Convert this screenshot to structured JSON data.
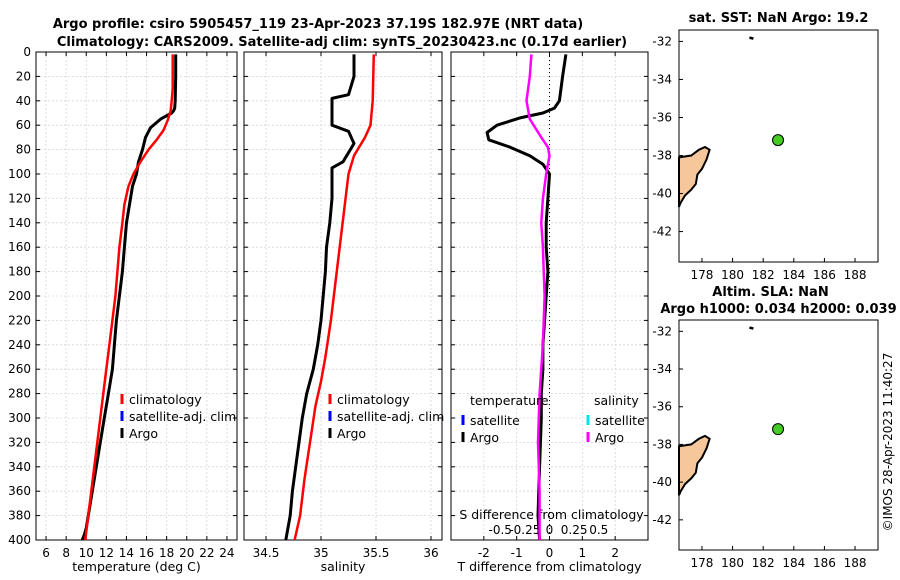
{
  "title": {
    "line1": "Argo profile: csiro 5905457_119 23-Apr-2023 37.19S 182.97E (NRT data)",
    "line2": "Climatology: CARS2009. Satellite-adj clim: synTS_20230423.nc (0.17d earlier)"
  },
  "watermark": "©IMOS 28-Apr-2023 11:40:27",
  "colors": {
    "argo": "#000000",
    "clim": "#ff0000",
    "sat": "#0000ff",
    "sal_diff": "#ff00ff",
    "sal_sat": "#00e5ee",
    "land": "#f5c79a",
    "float_marker": "#44cc22"
  },
  "chart_data": [
    {
      "type": "line",
      "name": "temperature",
      "xlabel": "temperature (deg C)",
      "ylabel": "",
      "xlim": [
        5,
        25
      ],
      "ylim": [
        0,
        400
      ],
      "xticks": [
        6,
        8,
        10,
        12,
        14,
        16,
        18,
        20,
        22,
        24
      ],
      "yticks": [
        0,
        20,
        40,
        60,
        80,
        100,
        120,
        140,
        160,
        180,
        200,
        220,
        240,
        260,
        280,
        300,
        320,
        340,
        360,
        380,
        400
      ],
      "legend": [
        "climatology",
        "satellite-adj. clim",
        "Argo"
      ],
      "series": [
        {
          "name": "Argo",
          "color": "#000000",
          "x": [
            18.9,
            18.9,
            18.85,
            18.8,
            18.7,
            18.5,
            17.4,
            16.4,
            15.9,
            15.6,
            15.2,
            15.0,
            14.6,
            14.3,
            14.0,
            13.8,
            13.6,
            13.3,
            13.0,
            12.8,
            12.6,
            12.2,
            11.8,
            11.4,
            11.0,
            10.6,
            10.4,
            10.2,
            10.0,
            9.8,
            9.6
          ],
          "y": [
            2,
            20,
            40,
            46,
            48,
            50,
            55,
            62,
            70,
            80,
            90,
            100,
            110,
            125,
            140,
            160,
            180,
            200,
            220,
            240,
            260,
            280,
            300,
            320,
            340,
            360,
            370,
            380,
            390,
            396,
            400
          ]
        },
        {
          "name": "climatology",
          "color": "#ff0000",
          "x": [
            18.6,
            18.6,
            18.5,
            18.4,
            18.1,
            17.7,
            17.0,
            16.2,
            15.4,
            14.7,
            14.2,
            13.8,
            13.6,
            13.3,
            13.1,
            12.9,
            12.6,
            12.3,
            12.0,
            11.7,
            11.4,
            11.1,
            10.8,
            10.5,
            10.2,
            9.9
          ],
          "y": [
            2,
            30,
            40,
            48,
            56,
            64,
            72,
            80,
            90,
            100,
            110,
            125,
            140,
            160,
            180,
            200,
            220,
            240,
            260,
            280,
            300,
            320,
            340,
            360,
            380,
            400
          ]
        }
      ]
    },
    {
      "type": "line",
      "name": "salinity",
      "xlabel": "salinity",
      "xlim": [
        34.3,
        36.1
      ],
      "ylim": [
        0,
        400
      ],
      "xticks": [
        34.5,
        35,
        35.5,
        36
      ],
      "xtick_labels": [
        "34.5",
        "35",
        "35.5",
        "36"
      ],
      "legend": [
        "climatology",
        "satellite-adj. clim",
        "Argo"
      ],
      "series": [
        {
          "name": "Argo",
          "color": "#000000",
          "x": [
            35.3,
            35.3,
            35.25,
            35.1,
            35.1,
            35.25,
            35.3,
            35.2,
            35.1,
            35.1,
            35.08,
            35.05,
            35.04,
            35.02,
            35.0,
            34.97,
            34.93,
            34.87,
            34.83,
            34.8,
            34.77,
            34.74,
            34.72,
            34.7,
            34.68
          ],
          "y": [
            2,
            20,
            35,
            38,
            60,
            65,
            75,
            90,
            95,
            120,
            140,
            160,
            180,
            200,
            220,
            240,
            260,
            280,
            300,
            320,
            340,
            360,
            380,
            390,
            400
          ]
        },
        {
          "name": "climatology",
          "color": "#ff0000",
          "x": [
            35.48,
            35.47,
            35.45,
            35.4,
            35.3,
            35.25,
            35.21,
            35.17,
            35.13,
            35.09,
            35.04,
            35.0,
            34.95,
            34.9,
            34.85,
            34.81,
            34.76
          ],
          "y": [
            2,
            40,
            60,
            70,
            85,
            100,
            130,
            160,
            190,
            220,
            250,
            270,
            290,
            320,
            350,
            380,
            400
          ]
        }
      ]
    },
    {
      "type": "line",
      "name": "difference",
      "xlabel": "T difference from climatology",
      "top_xlabel": "S difference from climatology",
      "xlim": [
        -3,
        3
      ],
      "ylim": [
        0,
        400
      ],
      "xticks": [
        -2,
        -1,
        0,
        1,
        2
      ],
      "xtick_labels": [
        "-2",
        "-1",
        "0",
        "1",
        "2"
      ],
      "top_xticks": [
        -1.5,
        -0.75,
        0,
        0.75,
        1.5
      ],
      "top_xtick_labels": [
        "-0.5",
        "-0.25",
        "0",
        "0.25",
        "0.5"
      ],
      "legend": {
        "temperature": [
          "satellite",
          "Argo"
        ],
        "salinity": [
          "satellite",
          "Argo"
        ]
      },
      "legend_headers": [
        "temperature",
        "salinity"
      ],
      "series": [
        {
          "name": "T diff Argo",
          "color": "#000000",
          "x": [
            0.5,
            0.4,
            0.3,
            0.15,
            -0.2,
            -0.9,
            -1.6,
            -1.9,
            -1.85,
            -1.2,
            -0.6,
            -0.2,
            0.0,
            -0.05,
            -0.1,
            -0.1,
            -0.05,
            -0.1,
            -0.15,
            -0.2,
            -0.2,
            -0.25,
            -0.25,
            -0.3,
            -0.35,
            -0.3
          ],
          "y": [
            2,
            20,
            40,
            46,
            50,
            54,
            60,
            66,
            72,
            78,
            85,
            92,
            100,
            120,
            140,
            160,
            180,
            200,
            220,
            240,
            260,
            280,
            300,
            340,
            380,
            400
          ]
        },
        {
          "name": "S diff Argo",
          "color": "#ff00ff",
          "x": [
            -0.55,
            -0.6,
            -0.7,
            -0.6,
            -0.25,
            -0.05,
            0.0,
            -0.1,
            -0.2,
            -0.25,
            -0.2,
            -0.15,
            -0.2,
            -0.3,
            -0.35,
            -0.3,
            -0.3,
            -0.3
          ],
          "y": [
            2,
            20,
            40,
            55,
            70,
            78,
            85,
            100,
            120,
            140,
            160,
            200,
            240,
            280,
            320,
            360,
            390,
            400
          ]
        }
      ]
    },
    {
      "type": "scatter",
      "name": "map-sst",
      "title": "sat. SST: NaN Argo: 19.2",
      "xlim": [
        176.5,
        189.5
      ],
      "ylim": [
        -43.6,
        -31.4
      ],
      "xticks": [
        178,
        180,
        182,
        184,
        186,
        188
      ],
      "yticks": [
        -32,
        -34,
        -36,
        -38,
        -40,
        -42
      ],
      "float": {
        "lon": 182.97,
        "lat": -37.19
      }
    },
    {
      "type": "scatter",
      "name": "map-sla",
      "title": "Altim. SLA: NaN",
      "subtitle": "Argo h1000: 0.034 h2000: 0.039",
      "xlim": [
        176.5,
        189.5
      ],
      "ylim": [
        -43.6,
        -31.4
      ],
      "xticks": [
        178,
        180,
        182,
        184,
        186,
        188
      ],
      "yticks": [
        -32,
        -34,
        -36,
        -38,
        -40,
        -42
      ],
      "float": {
        "lon": 182.97,
        "lat": -37.19
      }
    }
  ]
}
